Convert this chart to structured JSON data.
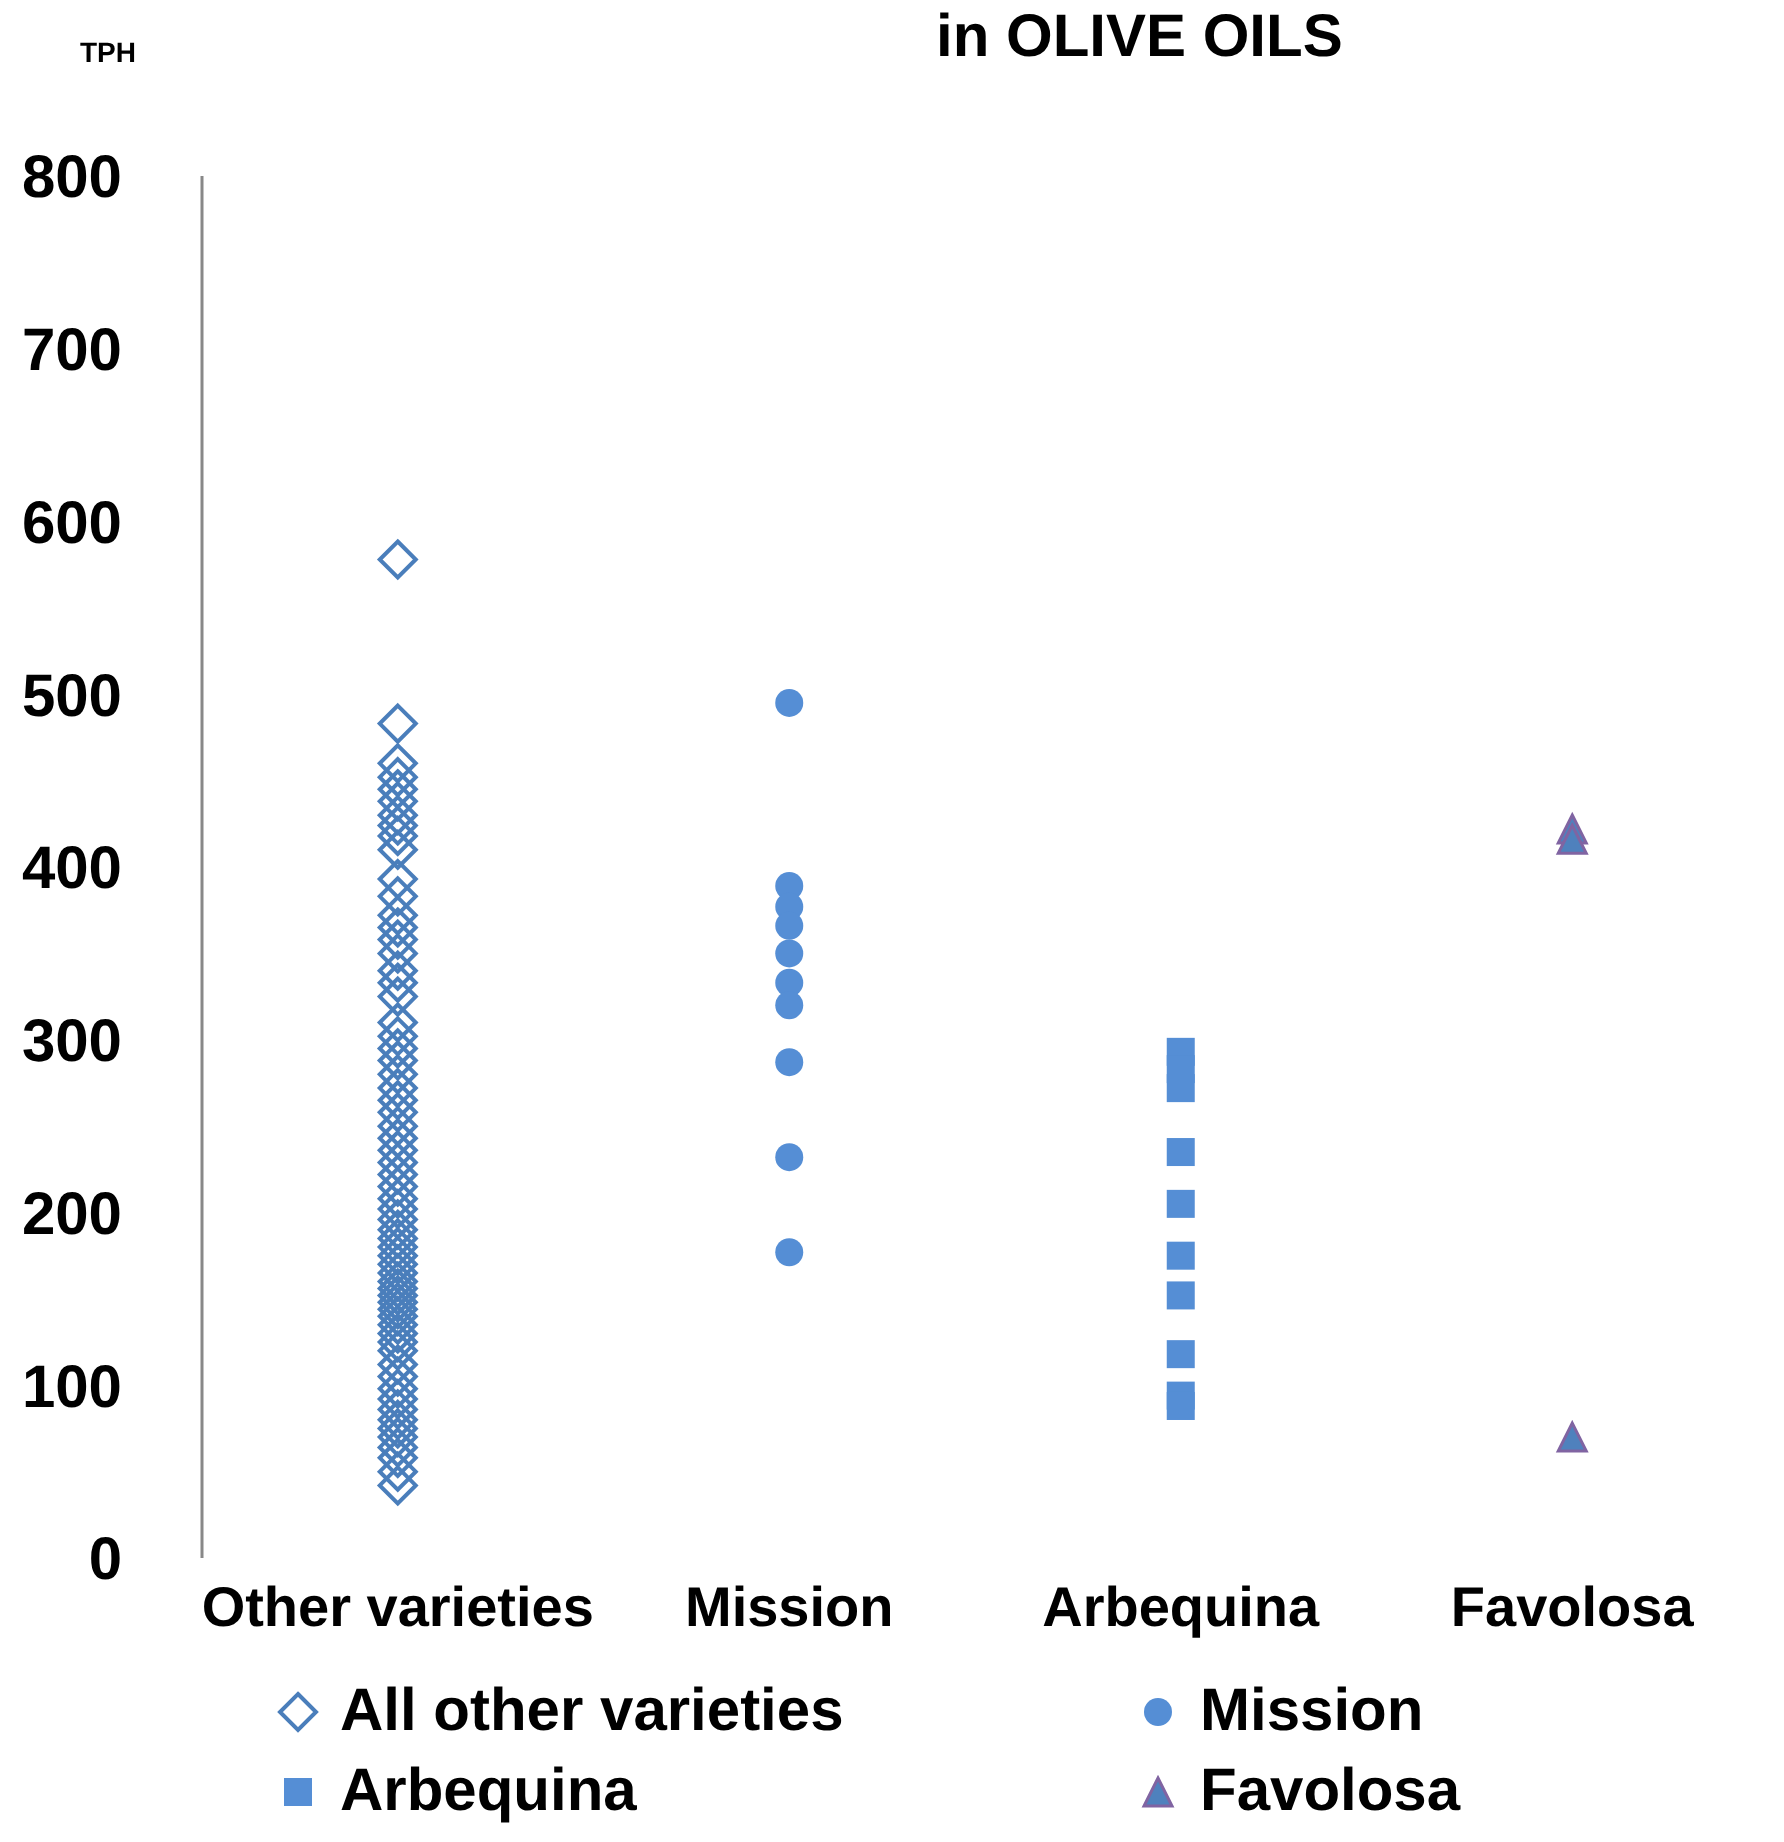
{
  "chart_data": {
    "type": "scatter",
    "title": "in  OLIVE OILS",
    "ylabel": "TPH",
    "categories": [
      "Other varieties",
      "Mission",
      "Arbequina",
      "Favolosa"
    ],
    "ylim": [
      0,
      800
    ],
    "yticks": [
      0,
      100,
      200,
      300,
      400,
      500,
      600,
      700,
      800
    ],
    "legend": "bottom",
    "series": [
      {
        "name": "All other varieties",
        "color": "#4a7ebb",
        "marker": "diamond",
        "x": [
          "Other varieties",
          "Other varieties",
          "Other varieties",
          "Other varieties",
          "Other varieties",
          "Other varieties",
          "Other varieties",
          "Other varieties",
          "Other varieties",
          "Other varieties",
          "Other varieties",
          "Other varieties",
          "Other varieties",
          "Other varieties",
          "Other varieties",
          "Other varieties",
          "Other varieties",
          "Other varieties",
          "Other varieties",
          "Other varieties",
          "Other varieties",
          "Other varieties",
          "Other varieties",
          "Other varieties",
          "Other varieties",
          "Other varieties",
          "Other varieties",
          "Other varieties",
          "Other varieties",
          "Other varieties",
          "Other varieties",
          "Other varieties",
          "Other varieties",
          "Other varieties",
          "Other varieties",
          "Other varieties",
          "Other varieties",
          "Other varieties",
          "Other varieties",
          "Other varieties",
          "Other varieties",
          "Other varieties",
          "Other varieties",
          "Other varieties",
          "Other varieties",
          "Other varieties",
          "Other varieties",
          "Other varieties",
          "Other varieties",
          "Other varieties",
          "Other varieties",
          "Other varieties",
          "Other varieties",
          "Other varieties",
          "Other varieties",
          "Other varieties",
          "Other varieties",
          "Other varieties",
          "Other varieties",
          "Other varieties",
          "Other varieties",
          "Other varieties",
          "Other varieties",
          "Other varieties"
        ],
        "values": [
          578,
          483,
          460,
          452,
          445,
          438,
          430,
          424,
          418,
          410,
          393,
          383,
          372,
          365,
          358,
          350,
          340,
          333,
          325,
          310,
          302,
          295,
          288,
          280,
          272,
          265,
          258,
          250,
          243,
          236,
          229,
          222,
          215,
          208,
          202,
          196,
          190,
          185,
          180,
          175,
          170,
          165,
          160,
          156,
          152,
          148,
          144,
          140,
          135,
          130,
          125,
          120,
          112,
          105,
          98,
          92,
          86,
          80,
          75,
          70,
          64,
          58,
          50,
          42
        ]
      },
      {
        "name": "Mission",
        "color": "#558ed5",
        "marker": "circle",
        "x": [
          "Mission",
          "Mission",
          "Mission",
          "Mission",
          "Mission",
          "Mission",
          "Mission",
          "Mission",
          "Mission",
          "Mission"
        ],
        "values": [
          495,
          389,
          377,
          366,
          350,
          333,
          320,
          287,
          232,
          177
        ]
      },
      {
        "name": "Arbequina",
        "color": "#558ed5",
        "marker": "square",
        "x": [
          "Arbequina",
          "Arbequina",
          "Arbequina",
          "Arbequina",
          "Arbequina",
          "Arbequina",
          "Arbequina",
          "Arbequina",
          "Arbequina",
          "Arbequina"
        ],
        "values": [
          293,
          283,
          272,
          235,
          205,
          175,
          152,
          118,
          94,
          88
        ]
      },
      {
        "name": "Favolosa",
        "color": "#4f81bd",
        "marker": "triangle",
        "x": [
          "Favolosa",
          "Favolosa",
          "Favolosa"
        ],
        "values": [
          422,
          416,
          70
        ]
      }
    ]
  }
}
